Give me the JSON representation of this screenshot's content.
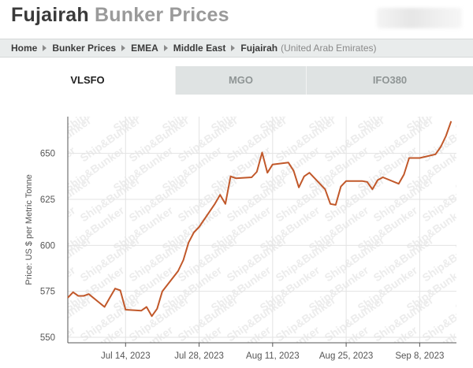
{
  "header": {
    "title_part1": "Fujairah",
    "title_part2": "Bunker Prices"
  },
  "breadcrumb": {
    "items": [
      "Home",
      "Bunker Prices",
      "EMEA",
      "Middle East",
      "Fujairah"
    ],
    "suffix": "(United Arab Emirates)"
  },
  "tabs": [
    {
      "label": "VLSFO",
      "active": true
    },
    {
      "label": "MGO",
      "active": false
    },
    {
      "label": "IFO380",
      "active": false
    }
  ],
  "colors": {
    "line": "#c1582a",
    "grid": "#e3e3e3",
    "axis": "#555555"
  },
  "chart_data": {
    "type": "line",
    "ylabel": "Price: US $ per Metric Tonne",
    "ylim": [
      547,
      670
    ],
    "yticks": [
      550,
      575,
      600,
      625,
      650
    ],
    "xlim": [
      "2023-07-03",
      "2023-09-15"
    ],
    "xticks": [
      {
        "date": "2023-07-14",
        "label": "Jul 14, 2023"
      },
      {
        "date": "2023-07-28",
        "label": "Jul 28, 2023"
      },
      {
        "date": "2023-08-11",
        "label": "Aug 11, 2023"
      },
      {
        "date": "2023-08-25",
        "label": "Aug 25, 2023"
      },
      {
        "date": "2023-09-08",
        "label": "Sep 8, 2023"
      }
    ],
    "watermark": "Ship&Bunker",
    "series": [
      {
        "points": [
          [
            "2023-07-03",
            571.5
          ],
          [
            "2023-07-04",
            574.5
          ],
          [
            "2023-07-05",
            572.5
          ],
          [
            "2023-07-06",
            572.5
          ],
          [
            "2023-07-07",
            573.5
          ],
          [
            "2023-07-10",
            566.5
          ],
          [
            "2023-07-11",
            571.5
          ],
          [
            "2023-07-12",
            576.5
          ],
          [
            "2023-07-13",
            575.5
          ],
          [
            "2023-07-14",
            565.0
          ],
          [
            "2023-07-17",
            564.5
          ],
          [
            "2023-07-18",
            566.5
          ],
          [
            "2023-07-19",
            561.5
          ],
          [
            "2023-07-20",
            565.5
          ],
          [
            "2023-07-21",
            575.0
          ],
          [
            "2023-07-24",
            586.0
          ],
          [
            "2023-07-25",
            592.0
          ],
          [
            "2023-07-26",
            601.5
          ],
          [
            "2023-07-27",
            607.0
          ],
          [
            "2023-07-28",
            610.0
          ],
          [
            "2023-07-31",
            622.5
          ],
          [
            "2023-08-01",
            627.5
          ],
          [
            "2023-08-02",
            622.5
          ],
          [
            "2023-08-03",
            637.5
          ],
          [
            "2023-08-04",
            636.5
          ],
          [
            "2023-08-07",
            637.0
          ],
          [
            "2023-08-08",
            640.0
          ],
          [
            "2023-08-09",
            650.5
          ],
          [
            "2023-08-10",
            639.5
          ],
          [
            "2023-08-11",
            644.0
          ],
          [
            "2023-08-14",
            645.0
          ],
          [
            "2023-08-15",
            640.5
          ],
          [
            "2023-08-16",
            631.5
          ],
          [
            "2023-08-17",
            637.5
          ],
          [
            "2023-08-18",
            639.5
          ],
          [
            "2023-08-21",
            630.5
          ],
          [
            "2023-08-22",
            622.5
          ],
          [
            "2023-08-23",
            622.0
          ],
          [
            "2023-08-24",
            632.0
          ],
          [
            "2023-08-25",
            635.0
          ],
          [
            "2023-08-28",
            635.0
          ],
          [
            "2023-08-29",
            634.5
          ],
          [
            "2023-08-30",
            630.5
          ],
          [
            "2023-08-31",
            635.5
          ],
          [
            "2023-09-01",
            637.0
          ],
          [
            "2023-09-04",
            633.5
          ],
          [
            "2023-09-05",
            638.5
          ],
          [
            "2023-09-06",
            647.5
          ],
          [
            "2023-09-07",
            647.5
          ],
          [
            "2023-09-08",
            647.5
          ],
          [
            "2023-09-11",
            649.5
          ],
          [
            "2023-09-12",
            653.5
          ],
          [
            "2023-09-13",
            659.5
          ],
          [
            "2023-09-14",
            667.5
          ]
        ]
      }
    ]
  }
}
